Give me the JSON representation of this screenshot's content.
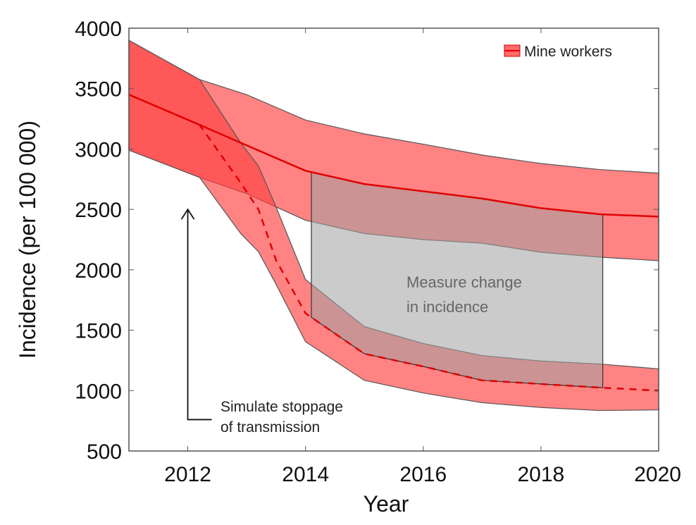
{
  "chart_data": {
    "type": "area",
    "xlabel": "Year",
    "ylabel": "Incidence (per 100 000)",
    "xlim": [
      2011,
      2020
    ],
    "ylim": [
      500,
      4000
    ],
    "xticks": [
      2012,
      2014,
      2016,
      2018,
      2020
    ],
    "yticks": [
      500,
      1000,
      1500,
      2000,
      2500,
      3000,
      3500,
      4000
    ],
    "grid": false,
    "legend": {
      "position": "top-right",
      "entries": [
        "Mine workers"
      ]
    },
    "colors": {
      "band": "#ff4040",
      "line": "#e00000",
      "box": "#a0a0a0",
      "edge": "#555555"
    },
    "series": [
      {
        "style": "solid",
        "x": [
          2011,
          2012.2,
          2013,
          2014,
          2015,
          2016,
          2017,
          2018,
          2019,
          2020
        ],
        "central": [
          3450,
          3200,
          3030,
          2820,
          2710,
          2650,
          2590,
          2510,
          2460,
          2440
        ],
        "upper": [
          3900,
          3575,
          3450,
          3240,
          3125,
          3040,
          2950,
          2880,
          2830,
          2800
        ],
        "lower": [
          2990,
          2765,
          2630,
          2410,
          2300,
          2250,
          2220,
          2145,
          2105,
          2075
        ]
      },
      {
        "style": "dashed",
        "x": [
          2011,
          2012.2,
          2012.9,
          2013.2,
          2013.5,
          2014,
          2015,
          2016,
          2017,
          2018,
          2019,
          2020
        ],
        "central": [
          3450,
          3200,
          2720,
          2500,
          2080,
          1640,
          1305,
          1200,
          1085,
          1055,
          1025,
          1000
        ],
        "upper": [
          3900,
          3575,
          3050,
          2860,
          2520,
          1920,
          1530,
          1390,
          1290,
          1245,
          1220,
          1180
        ],
        "lower": [
          2990,
          2765,
          2300,
          2150,
          1880,
          1405,
          1085,
          980,
          900,
          860,
          835,
          840
        ]
      }
    ],
    "annotations": {
      "stoppage": {
        "lines": [
          "Simulate stoppage",
          "of transmission"
        ],
        "arrow_x": 2012,
        "arrow_from": 760,
        "arrow_to": 2500
      },
      "measure": {
        "lines": [
          "Measure change",
          "in incidence"
        ],
        "x_range": [
          2014.1,
          2019.05
        ]
      }
    }
  }
}
